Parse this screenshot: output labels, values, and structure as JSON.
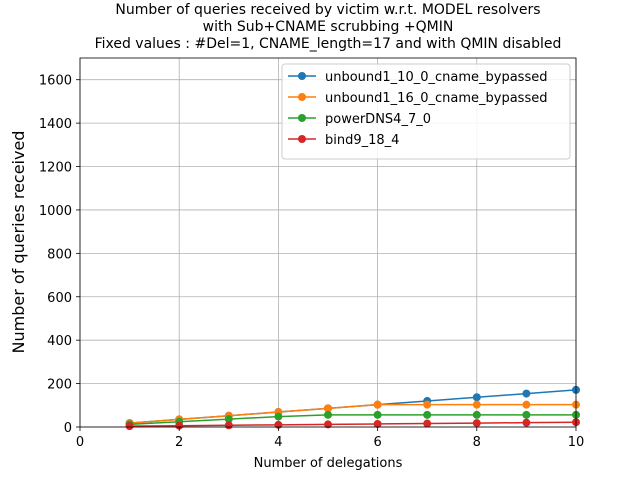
{
  "chart_data": {
    "type": "line",
    "title_lines": [
      "Number of queries received by victim w.r.t. MODEL resolvers",
      "with Sub+CNAME scrubbing +QMIN",
      "Fixed values : #Del=1, CNAME_length=17 and with QMIN disabled"
    ],
    "xlabel": "Number of delegations",
    "ylabel": "Number of queries received",
    "xlim": [
      0,
      10
    ],
    "ylim": [
      0,
      1700
    ],
    "xticks": [
      0,
      2,
      4,
      6,
      8,
      10
    ],
    "yticks": [
      0,
      200,
      400,
      600,
      800,
      1000,
      1200,
      1400,
      1600
    ],
    "grid": true,
    "legend_position": "top-right",
    "x": [
      1,
      2,
      3,
      4,
      5,
      6,
      7,
      8,
      9,
      10
    ],
    "series": [
      {
        "name": "unbound1_10_0_cname_bypassed",
        "color": "#1f77b4",
        "values": [
          18,
          35,
          52,
          69,
          86,
          103,
          120,
          137,
          154,
          171
        ]
      },
      {
        "name": "unbound1_16_0_cname_bypassed",
        "color": "#ff7f0e",
        "values": [
          18,
          35,
          52,
          69,
          86,
          103,
          103,
          103,
          103,
          103
        ]
      },
      {
        "name": "powerDNS4_7_0",
        "color": "#2ca02c",
        "values": [
          12,
          24,
          36,
          48,
          56,
          56,
          56,
          56,
          56,
          56
        ]
      },
      {
        "name": "bind9_18_4",
        "color": "#d62728",
        "values": [
          4,
          6,
          8,
          10,
          12,
          14,
          16,
          18,
          20,
          22
        ]
      }
    ]
  }
}
